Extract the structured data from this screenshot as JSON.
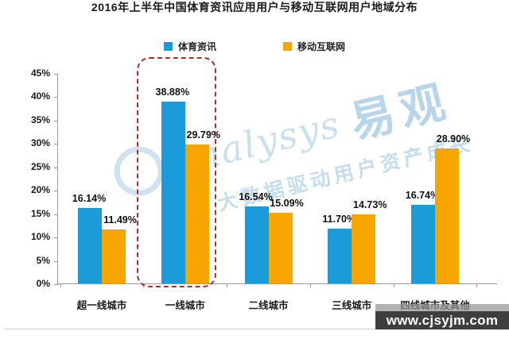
{
  "chart_data": {
    "type": "bar",
    "title": "2016年上半年中国体育资讯应用用户与移动互联网用户地域分布",
    "categories": [
      "超一线城市",
      "一线城市",
      "二线城市",
      "三线城市",
      "四线城市及其他"
    ],
    "series": [
      {
        "name": "体育资讯",
        "color": "#1b9cd8",
        "values": [
          16.14,
          38.88,
          16.54,
          11.7,
          16.74
        ]
      },
      {
        "name": "移动互联网",
        "color": "#f7a600",
        "values": [
          11.49,
          29.79,
          15.09,
          14.73,
          28.9
        ]
      }
    ],
    "xlabel": "",
    "ylabel": "",
    "ylim": [
      0,
      45
    ],
    "ytick_step": 5,
    "ytick_labels": [
      "0%",
      "5%",
      "10%",
      "15%",
      "20%",
      "25%",
      "30%",
      "35%",
      "40%",
      "45%"
    ],
    "grid": false,
    "legend_position": "top",
    "value_label_format": "0.00%",
    "highlight": {
      "category": "一线城市",
      "shape": "red-dashed-rounded-rect",
      "color": "#b03028"
    }
  },
  "watermark": {
    "logo_latin": "analysys",
    "logo_cjk": "易观",
    "slogan": "大数据驱动用户资产成长"
  },
  "footer": {
    "url": "www.cjsyjm.com"
  },
  "colors": {
    "axis": "#9a9a9a",
    "label_text": "#1a1a1a",
    "watermark_blue": "#a5cbe6",
    "footer_bg": "#323232",
    "footer_text": "#ffffff"
  }
}
